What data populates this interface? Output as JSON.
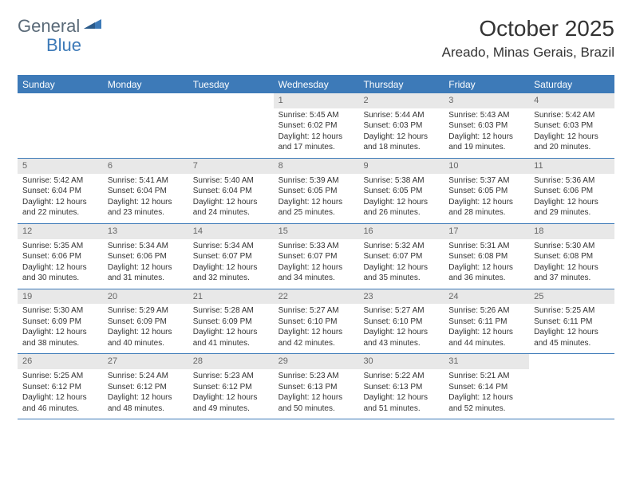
{
  "logo": {
    "text1": "General",
    "text2": "Blue"
  },
  "title": "October 2025",
  "location": "Areado, Minas Gerais, Brazil",
  "colors": {
    "accent": "#3d7ab8",
    "daybar": "#e8e8e8",
    "text": "#333333",
    "logoGrey": "#5a6a78"
  },
  "weekdays": [
    "Sunday",
    "Monday",
    "Tuesday",
    "Wednesday",
    "Thursday",
    "Friday",
    "Saturday"
  ],
  "weeks": [
    [
      null,
      null,
      null,
      {
        "n": "1",
        "sr": "5:45 AM",
        "ss": "6:02 PM",
        "dl": "12 hours and 17 minutes."
      },
      {
        "n": "2",
        "sr": "5:44 AM",
        "ss": "6:03 PM",
        "dl": "12 hours and 18 minutes."
      },
      {
        "n": "3",
        "sr": "5:43 AM",
        "ss": "6:03 PM",
        "dl": "12 hours and 19 minutes."
      },
      {
        "n": "4",
        "sr": "5:42 AM",
        "ss": "6:03 PM",
        "dl": "12 hours and 20 minutes."
      }
    ],
    [
      {
        "n": "5",
        "sr": "5:42 AM",
        "ss": "6:04 PM",
        "dl": "12 hours and 22 minutes."
      },
      {
        "n": "6",
        "sr": "5:41 AM",
        "ss": "6:04 PM",
        "dl": "12 hours and 23 minutes."
      },
      {
        "n": "7",
        "sr": "5:40 AM",
        "ss": "6:04 PM",
        "dl": "12 hours and 24 minutes."
      },
      {
        "n": "8",
        "sr": "5:39 AM",
        "ss": "6:05 PM",
        "dl": "12 hours and 25 minutes."
      },
      {
        "n": "9",
        "sr": "5:38 AM",
        "ss": "6:05 PM",
        "dl": "12 hours and 26 minutes."
      },
      {
        "n": "10",
        "sr": "5:37 AM",
        "ss": "6:05 PM",
        "dl": "12 hours and 28 minutes."
      },
      {
        "n": "11",
        "sr": "5:36 AM",
        "ss": "6:06 PM",
        "dl": "12 hours and 29 minutes."
      }
    ],
    [
      {
        "n": "12",
        "sr": "5:35 AM",
        "ss": "6:06 PM",
        "dl": "12 hours and 30 minutes."
      },
      {
        "n": "13",
        "sr": "5:34 AM",
        "ss": "6:06 PM",
        "dl": "12 hours and 31 minutes."
      },
      {
        "n": "14",
        "sr": "5:34 AM",
        "ss": "6:07 PM",
        "dl": "12 hours and 32 minutes."
      },
      {
        "n": "15",
        "sr": "5:33 AM",
        "ss": "6:07 PM",
        "dl": "12 hours and 34 minutes."
      },
      {
        "n": "16",
        "sr": "5:32 AM",
        "ss": "6:07 PM",
        "dl": "12 hours and 35 minutes."
      },
      {
        "n": "17",
        "sr": "5:31 AM",
        "ss": "6:08 PM",
        "dl": "12 hours and 36 minutes."
      },
      {
        "n": "18",
        "sr": "5:30 AM",
        "ss": "6:08 PM",
        "dl": "12 hours and 37 minutes."
      }
    ],
    [
      {
        "n": "19",
        "sr": "5:30 AM",
        "ss": "6:09 PM",
        "dl": "12 hours and 38 minutes."
      },
      {
        "n": "20",
        "sr": "5:29 AM",
        "ss": "6:09 PM",
        "dl": "12 hours and 40 minutes."
      },
      {
        "n": "21",
        "sr": "5:28 AM",
        "ss": "6:09 PM",
        "dl": "12 hours and 41 minutes."
      },
      {
        "n": "22",
        "sr": "5:27 AM",
        "ss": "6:10 PM",
        "dl": "12 hours and 42 minutes."
      },
      {
        "n": "23",
        "sr": "5:27 AM",
        "ss": "6:10 PM",
        "dl": "12 hours and 43 minutes."
      },
      {
        "n": "24",
        "sr": "5:26 AM",
        "ss": "6:11 PM",
        "dl": "12 hours and 44 minutes."
      },
      {
        "n": "25",
        "sr": "5:25 AM",
        "ss": "6:11 PM",
        "dl": "12 hours and 45 minutes."
      }
    ],
    [
      {
        "n": "26",
        "sr": "5:25 AM",
        "ss": "6:12 PM",
        "dl": "12 hours and 46 minutes."
      },
      {
        "n": "27",
        "sr": "5:24 AM",
        "ss": "6:12 PM",
        "dl": "12 hours and 48 minutes."
      },
      {
        "n": "28",
        "sr": "5:23 AM",
        "ss": "6:12 PM",
        "dl": "12 hours and 49 minutes."
      },
      {
        "n": "29",
        "sr": "5:23 AM",
        "ss": "6:13 PM",
        "dl": "12 hours and 50 minutes."
      },
      {
        "n": "30",
        "sr": "5:22 AM",
        "ss": "6:13 PM",
        "dl": "12 hours and 51 minutes."
      },
      {
        "n": "31",
        "sr": "5:21 AM",
        "ss": "6:14 PM",
        "dl": "12 hours and 52 minutes."
      },
      null
    ]
  ],
  "labels": {
    "sunrise": "Sunrise: ",
    "sunset": "Sunset: ",
    "daylight": "Daylight: "
  }
}
